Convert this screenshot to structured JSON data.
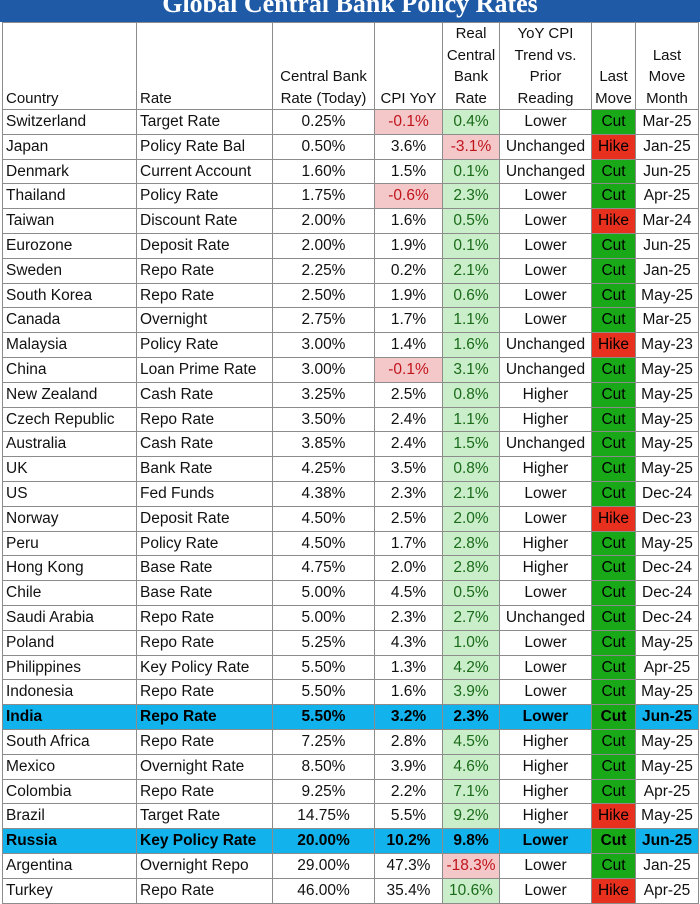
{
  "title": "Global Central Bank Policy Rates",
  "headers": {
    "country": "Country",
    "rate": "Rate",
    "cb_rate": "Central Bank Rate (Today)",
    "cpi": "CPI YoY",
    "real": "Real Central Bank Rate",
    "trend": "YoY CPI Trend vs. Prior Reading",
    "last_move": "Last Move",
    "month": "Last Move Month"
  },
  "colors": {
    "title_bg": "#1f5aa6",
    "highlight_row": "#12b3ec",
    "cut": "#18a818",
    "hike": "#e8301f",
    "negative_cell": "#f4c7c9",
    "positive_cell": "#c9eec9"
  },
  "rows": [
    {
      "country": "Switzerland",
      "rate": "Target Rate",
      "cb": "0.25%",
      "cpi": "-0.1%",
      "real": "0.4%",
      "trend": "Lower",
      "move": "Cut",
      "month": "Mar-25"
    },
    {
      "country": "Japan",
      "rate": "Policy Rate Bal",
      "cb": "0.50%",
      "cpi": "3.6%",
      "real": "-3.1%",
      "trend": "Unchanged",
      "move": "Hike",
      "month": "Jan-25"
    },
    {
      "country": "Denmark",
      "rate": "Current Account",
      "cb": "1.60%",
      "cpi": "1.5%",
      "real": "0.1%",
      "trend": "Unchanged",
      "move": "Cut",
      "month": "Jun-25"
    },
    {
      "country": "Thailand",
      "rate": "Policy Rate",
      "cb": "1.75%",
      "cpi": "-0.6%",
      "real": "2.3%",
      "trend": "Lower",
      "move": "Cut",
      "month": "Apr-25"
    },
    {
      "country": "Taiwan",
      "rate": "Discount Rate",
      "cb": "2.00%",
      "cpi": "1.6%",
      "real": "0.5%",
      "trend": "Lower",
      "move": "Hike",
      "month": "Mar-24"
    },
    {
      "country": "Eurozone",
      "rate": "Deposit Rate",
      "cb": "2.00%",
      "cpi": "1.9%",
      "real": "0.1%",
      "trend": "Lower",
      "move": "Cut",
      "month": "Jun-25"
    },
    {
      "country": "Sweden",
      "rate": "Repo Rate",
      "cb": "2.25%",
      "cpi": "0.2%",
      "real": "2.1%",
      "trend": "Lower",
      "move": "Cut",
      "month": "Jan-25"
    },
    {
      "country": "South Korea",
      "rate": "Repo Rate",
      "cb": "2.50%",
      "cpi": "1.9%",
      "real": "0.6%",
      "trend": "Lower",
      "move": "Cut",
      "month": "May-25"
    },
    {
      "country": "Canada",
      "rate": "Overnight",
      "cb": "2.75%",
      "cpi": "1.7%",
      "real": "1.1%",
      "trend": "Lower",
      "move": "Cut",
      "month": "Mar-25"
    },
    {
      "country": "Malaysia",
      "rate": "Policy Rate",
      "cb": "3.00%",
      "cpi": "1.4%",
      "real": "1.6%",
      "trend": "Unchanged",
      "move": "Hike",
      "month": "May-23"
    },
    {
      "country": "China",
      "rate": "Loan Prime Rate",
      "cb": "3.00%",
      "cpi": "-0.1%",
      "real": "3.1%",
      "trend": "Unchanged",
      "move": "Cut",
      "month": "May-25"
    },
    {
      "country": "New Zealand",
      "rate": "Cash Rate",
      "cb": "3.25%",
      "cpi": "2.5%",
      "real": "0.8%",
      "trend": "Higher",
      "move": "Cut",
      "month": "May-25"
    },
    {
      "country": "Czech Republic",
      "rate": "Repo Rate",
      "cb": "3.50%",
      "cpi": "2.4%",
      "real": "1.1%",
      "trend": "Higher",
      "move": "Cut",
      "month": "May-25"
    },
    {
      "country": "Australia",
      "rate": "Cash Rate",
      "cb": "3.85%",
      "cpi": "2.4%",
      "real": "1.5%",
      "trend": "Unchanged",
      "move": "Cut",
      "month": "May-25"
    },
    {
      "country": "UK",
      "rate": "Bank Rate",
      "cb": "4.25%",
      "cpi": "3.5%",
      "real": "0.8%",
      "trend": "Higher",
      "move": "Cut",
      "month": "May-25"
    },
    {
      "country": "US",
      "rate": "Fed Funds",
      "cb": "4.38%",
      "cpi": "2.3%",
      "real": "2.1%",
      "trend": "Lower",
      "move": "Cut",
      "month": "Dec-24"
    },
    {
      "country": "Norway",
      "rate": "Deposit Rate",
      "cb": "4.50%",
      "cpi": "2.5%",
      "real": "2.0%",
      "trend": "Lower",
      "move": "Hike",
      "month": "Dec-23"
    },
    {
      "country": "Peru",
      "rate": "Policy Rate",
      "cb": "4.50%",
      "cpi": "1.7%",
      "real": "2.8%",
      "trend": "Higher",
      "move": "Cut",
      "month": "May-25"
    },
    {
      "country": "Hong Kong",
      "rate": "Base Rate",
      "cb": "4.75%",
      "cpi": "2.0%",
      "real": "2.8%",
      "trend": "Higher",
      "move": "Cut",
      "month": "Dec-24"
    },
    {
      "country": "Chile",
      "rate": "Base Rate",
      "cb": "5.00%",
      "cpi": "4.5%",
      "real": "0.5%",
      "trend": "Lower",
      "move": "Cut",
      "month": "Dec-24"
    },
    {
      "country": "Saudi Arabia",
      "rate": "Repo Rate",
      "cb": "5.00%",
      "cpi": "2.3%",
      "real": "2.7%",
      "trend": "Unchanged",
      "move": "Cut",
      "month": "Dec-24"
    },
    {
      "country": "Poland",
      "rate": "Repo Rate",
      "cb": "5.25%",
      "cpi": "4.3%",
      "real": "1.0%",
      "trend": "Lower",
      "move": "Cut",
      "month": "May-25"
    },
    {
      "country": "Philippines",
      "rate": "Key Policy Rate",
      "cb": "5.50%",
      "cpi": "1.3%",
      "real": "4.2%",
      "trend": "Lower",
      "move": "Cut",
      "month": "Apr-25"
    },
    {
      "country": "Indonesia",
      "rate": "Repo Rate",
      "cb": "5.50%",
      "cpi": "1.6%",
      "real": "3.9%",
      "trend": "Lower",
      "move": "Cut",
      "month": "May-25"
    },
    {
      "country": "India",
      "rate": "Repo Rate",
      "cb": "5.50%",
      "cpi": "3.2%",
      "real": "2.3%",
      "trend": "Lower",
      "move": "Cut",
      "month": "Jun-25",
      "highlight": true
    },
    {
      "country": "South Africa",
      "rate": "Repo Rate",
      "cb": "7.25%",
      "cpi": "2.8%",
      "real": "4.5%",
      "trend": "Higher",
      "move": "Cut",
      "month": "May-25"
    },
    {
      "country": "Mexico",
      "rate": "Overnight Rate",
      "cb": "8.50%",
      "cpi": "3.9%",
      "real": "4.6%",
      "trend": "Higher",
      "move": "Cut",
      "month": "May-25"
    },
    {
      "country": "Colombia",
      "rate": "Repo Rate",
      "cb": "9.25%",
      "cpi": "2.2%",
      "real": "7.1%",
      "trend": "Higher",
      "move": "Cut",
      "month": "Apr-25"
    },
    {
      "country": "Brazil",
      "rate": "Target Rate",
      "cb": "14.75%",
      "cpi": "5.5%",
      "real": "9.2%",
      "trend": "Higher",
      "move": "Hike",
      "month": "May-25"
    },
    {
      "country": "Russia",
      "rate": "Key Policy Rate",
      "cb": "20.00%",
      "cpi": "10.2%",
      "real": "9.8%",
      "trend": "Lower",
      "move": "Cut",
      "month": "Jun-25",
      "highlight": true
    },
    {
      "country": "Argentina",
      "rate": "Overnight Repo",
      "cb": "29.00%",
      "cpi": "47.3%",
      "real": "-18.3%",
      "trend": "Lower",
      "move": "Cut",
      "month": "Jan-25"
    },
    {
      "country": "Turkey",
      "rate": "Repo Rate",
      "cb": "46.00%",
      "cpi": "35.4%",
      "real": "10.6%",
      "trend": "Lower",
      "move": "Hike",
      "month": "Apr-25"
    }
  ]
}
